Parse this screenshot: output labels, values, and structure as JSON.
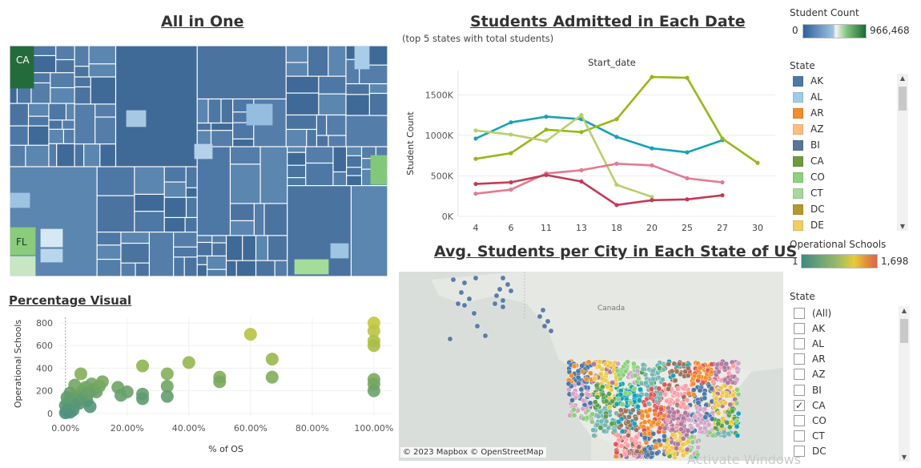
{
  "titles": {
    "all_in_one": "All in One",
    "students_admitted": "Students Admitted in Each Date",
    "students_admitted_sub": "(top 5 states with total students)",
    "avg_students": "Avg. Students per City in Each State of US",
    "percentage_visual": "Percentage Visual"
  },
  "treemap": {
    "labels": {
      "ca": "CA",
      "fl": "FL"
    }
  },
  "legends": {
    "student_count": {
      "title": "Student Count",
      "min": "0",
      "max": "966,468"
    },
    "state": {
      "title": "State",
      "items": [
        {
          "label": "AK",
          "color": "#4e79a7"
        },
        {
          "label": "AL",
          "color": "#a0cbe8"
        },
        {
          "label": "AR",
          "color": "#f28e2b"
        },
        {
          "label": "AZ",
          "color": "#ffbe7d"
        },
        {
          "label": "BI",
          "color": "#59769a"
        },
        {
          "label": "CA",
          "color": "#6f9a3d"
        },
        {
          "label": "CO",
          "color": "#8cd17d"
        },
        {
          "label": "CT",
          "color": "#a8d8a0"
        },
        {
          "label": "DC",
          "color": "#b6992d"
        },
        {
          "label": "DE",
          "color": "#f1ce63"
        }
      ]
    },
    "operational_schools": {
      "title": "Operational Schools",
      "min": "1",
      "max": "1,698"
    },
    "state_filter": {
      "title": "State",
      "items": [
        {
          "label": "(All)",
          "checked": false
        },
        {
          "label": "AK",
          "checked": false
        },
        {
          "label": "AL",
          "checked": false
        },
        {
          "label": "AR",
          "checked": false
        },
        {
          "label": "AZ",
          "checked": false
        },
        {
          "label": "BI",
          "checked": false
        },
        {
          "label": "CA",
          "checked": true
        },
        {
          "label": "CO",
          "checked": false
        },
        {
          "label": "CT",
          "checked": false
        },
        {
          "label": "DC",
          "checked": false
        }
      ]
    }
  },
  "map": {
    "credit": "© 2023 Mapbox © OpenStreetMap",
    "labels": {
      "canada": "Canada",
      "mexico": "México"
    }
  },
  "watermark": "Activate Windows",
  "chart_data": [
    {
      "type": "line",
      "title": "Start_date",
      "xlabel": "",
      "ylabel": "Student Count",
      "categories": [
        "4",
        "6",
        "11",
        "13",
        "18",
        "20",
        "25",
        "27",
        "30"
      ],
      "ylim": [
        0,
        1800000
      ],
      "yticks": [
        0,
        500000,
        1000000,
        1500000
      ],
      "ytick_labels": [
        "0K",
        "500K",
        "1000K",
        "1500K"
      ],
      "grid": true,
      "series": [
        {
          "color": "#17a2b8",
          "values": [
            960000,
            1160000,
            1230000,
            1200000,
            980000,
            840000,
            790000,
            940000,
            null
          ]
        },
        {
          "color": "#97b817",
          "values": [
            710000,
            780000,
            1070000,
            1040000,
            1200000,
            1720000,
            1710000,
            960000,
            660000
          ]
        },
        {
          "color": "#b9cf6a",
          "values": [
            1060000,
            1010000,
            930000,
            1250000,
            390000,
            240000,
            null,
            null,
            null
          ]
        },
        {
          "color": "#e27a92",
          "values": [
            280000,
            330000,
            530000,
            570000,
            650000,
            630000,
            470000,
            420000,
            null
          ]
        },
        {
          "color": "#c43b55",
          "values": [
            400000,
            420000,
            510000,
            430000,
            140000,
            200000,
            210000,
            260000,
            null
          ]
        }
      ]
    },
    {
      "type": "scatter",
      "title": "",
      "xlabel": "% of OS",
      "ylabel": "Operational Schools",
      "xlim": [
        -0.02,
        1.06
      ],
      "ylim": [
        -30,
        850
      ],
      "xticks": [
        0,
        0.2,
        0.4,
        0.6,
        0.8,
        1.0
      ],
      "xtick_labels": [
        "0.00%",
        "20.00%",
        "40.00%",
        "60.00%",
        "80.00%",
        "100.00%"
      ],
      "yticks": [
        0,
        200,
        400,
        600,
        800
      ],
      "ytick_labels": [
        "0",
        "200",
        "400",
        "600",
        "800"
      ],
      "points": [
        [
          0.0,
          5
        ],
        [
          0.005,
          20
        ],
        [
          0.01,
          40
        ],
        [
          0.015,
          10
        ],
        [
          0.02,
          60
        ],
        [
          0.025,
          30
        ],
        [
          0.03,
          80
        ],
        [
          0.01,
          100
        ],
        [
          0.02,
          130
        ],
        [
          0.03,
          150
        ],
        [
          0.04,
          120
        ],
        [
          0.045,
          90
        ],
        [
          0.05,
          170
        ],
        [
          0.055,
          200
        ],
        [
          0.06,
          140
        ],
        [
          0.065,
          230
        ],
        [
          0.07,
          110
        ],
        [
          0.075,
          180
        ],
        [
          0.08,
          60
        ],
        [
          0.085,
          260
        ],
        [
          0.09,
          210
        ],
        [
          0.1,
          190
        ],
        [
          0.11,
          240
        ],
        [
          0.12,
          280
        ],
        [
          0.05,
          350
        ],
        [
          0.03,
          250
        ],
        [
          0.015,
          180
        ],
        [
          0.0,
          70
        ],
        [
          0.005,
          140
        ],
        [
          0.17,
          230
        ],
        [
          0.18,
          160
        ],
        [
          0.2,
          190
        ],
        [
          0.25,
          420
        ],
        [
          0.25,
          170
        ],
        [
          0.25,
          130
        ],
        [
          0.33,
          350
        ],
        [
          0.33,
          240
        ],
        [
          0.33,
          150
        ],
        [
          0.4,
          450
        ],
        [
          0.5,
          320
        ],
        [
          0.5,
          280
        ],
        [
          0.6,
          700
        ],
        [
          0.67,
          480
        ],
        [
          0.67,
          320
        ],
        [
          1.0,
          800
        ],
        [
          1.0,
          730
        ],
        [
          1.0,
          640
        ],
        [
          1.0,
          600
        ],
        [
          1.0,
          300
        ],
        [
          1.0,
          260
        ],
        [
          1.0,
          200
        ]
      ]
    }
  ]
}
